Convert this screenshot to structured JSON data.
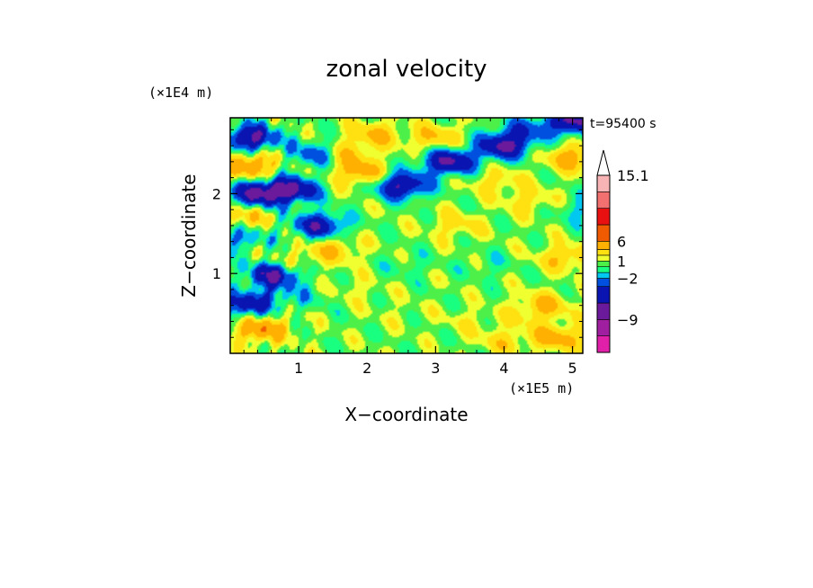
{
  "chart_data": {
    "type": "heatmap",
    "title": "zonal velocity",
    "xlabel": "X−coordinate",
    "ylabel": "Z−coordinate",
    "x_unit": "(×1E5 m)",
    "y_unit": "(×1E4 m)",
    "time_label": "t=95400 s",
    "xlim": [
      0,
      5.15
    ],
    "ylim": [
      0,
      2.95
    ],
    "x_ticks": [
      1,
      2,
      3,
      4,
      5
    ],
    "y_ticks": [
      1,
      2
    ],
    "x_tick_labels": [
      "1",
      "2",
      "3",
      "4",
      "5"
    ],
    "y_tick_labels": [
      "1",
      "2"
    ],
    "colorbar": {
      "levels": [
        -15.1,
        -12,
        -9,
        -6,
        -3.5,
        -2,
        -1,
        0,
        1,
        2,
        3.5,
        6,
        9,
        12,
        15.1
      ],
      "labels": [
        {
          "value": 15.1,
          "text": "15.1"
        },
        {
          "value": 6,
          "text": "6"
        },
        {
          "value": 1,
          "text": "1"
        },
        {
          "value": -2,
          "text": "−2"
        },
        {
          "value": -9,
          "text": "−9"
        }
      ],
      "colors": [
        "#e020a8",
        "#a01fa0",
        "#6a1a9a",
        "#0a14b0",
        "#0050e0",
        "#00c8f0",
        "#19ff80",
        "#4df048",
        "#f0ff30",
        "#ffe010",
        "#ffb000",
        "#f05a00",
        "#e81010",
        "#f27070",
        "#f8b4b4"
      ],
      "extend": "max"
    },
    "field_description": "contour-filled zonal velocity field",
    "blobs": [
      {
        "x": 0.3,
        "z": 2.7,
        "v": -7
      },
      {
        "x": 0.3,
        "z": 2.35,
        "v": 5
      },
      {
        "x": 0.4,
        "z": 2.0,
        "v": -7
      },
      {
        "x": 0.2,
        "z": 1.7,
        "v": 3
      },
      {
        "x": 0.15,
        "z": 1.45,
        "v": -3
      },
      {
        "x": 0.9,
        "z": 2.05,
        "v": -7
      },
      {
        "x": 1.25,
        "z": 2.5,
        "v": -4
      },
      {
        "x": 1.7,
        "z": 2.5,
        "v": 3
      },
      {
        "x": 1.3,
        "z": 1.6,
        "v": -6
      },
      {
        "x": 1.9,
        "z": 2.25,
        "v": 4
      },
      {
        "x": 1.5,
        "z": 1.3,
        "v": 3
      },
      {
        "x": 2.5,
        "z": 2.1,
        "v": -7
      },
      {
        "x": 3.2,
        "z": 2.4,
        "v": -7
      },
      {
        "x": 2.1,
        "z": 2.75,
        "v": 3
      },
      {
        "x": 3.0,
        "z": 2.7,
        "v": 3
      },
      {
        "x": 4.0,
        "z": 2.6,
        "v": -7
      },
      {
        "x": 4.3,
        "z": 2.8,
        "v": -3
      },
      {
        "x": 5.0,
        "z": 2.45,
        "v": 4
      },
      {
        "x": 5.0,
        "z": 2.9,
        "v": -7
      },
      {
        "x": 4.9,
        "z": 1.2,
        "v": 3
      },
      {
        "x": 4.4,
        "z": 1.9,
        "v": 2
      },
      {
        "x": 3.9,
        "z": 2.15,
        "v": 2
      },
      {
        "x": 3.3,
        "z": 1.6,
        "v": 2
      },
      {
        "x": 2.6,
        "z": 1.1,
        "v": -1
      },
      {
        "x": 3.8,
        "z": 1.1,
        "v": -1
      },
      {
        "x": 1.8,
        "z": 0.8,
        "v": 1
      },
      {
        "x": 2.5,
        "z": 0.5,
        "v": 0.5
      },
      {
        "x": 3.5,
        "z": 0.4,
        "v": 1
      },
      {
        "x": 4.3,
        "z": 0.45,
        "v": 1
      },
      {
        "x": 4.8,
        "z": 0.2,
        "v": 4
      },
      {
        "x": 1.2,
        "z": 0.7,
        "v": -1
      },
      {
        "x": 0.6,
        "z": 0.7,
        "v": -2
      },
      {
        "x": 0.45,
        "z": 0.3,
        "v": 5
      },
      {
        "x": 0.2,
        "z": 0.6,
        "v": -5
      },
      {
        "x": 0.8,
        "z": 1.1,
        "v": 3
      },
      {
        "x": 0.65,
        "z": 1.0,
        "v": -8
      },
      {
        "x": 4.6,
        "z": 0.6,
        "v": 3
      },
      {
        "x": 4.0,
        "z": 0.15,
        "v": 2
      },
      {
        "x": 3.0,
        "z": 1.4,
        "v": 0
      },
      {
        "x": 5.1,
        "z": 1.8,
        "v": -2
      }
    ]
  }
}
